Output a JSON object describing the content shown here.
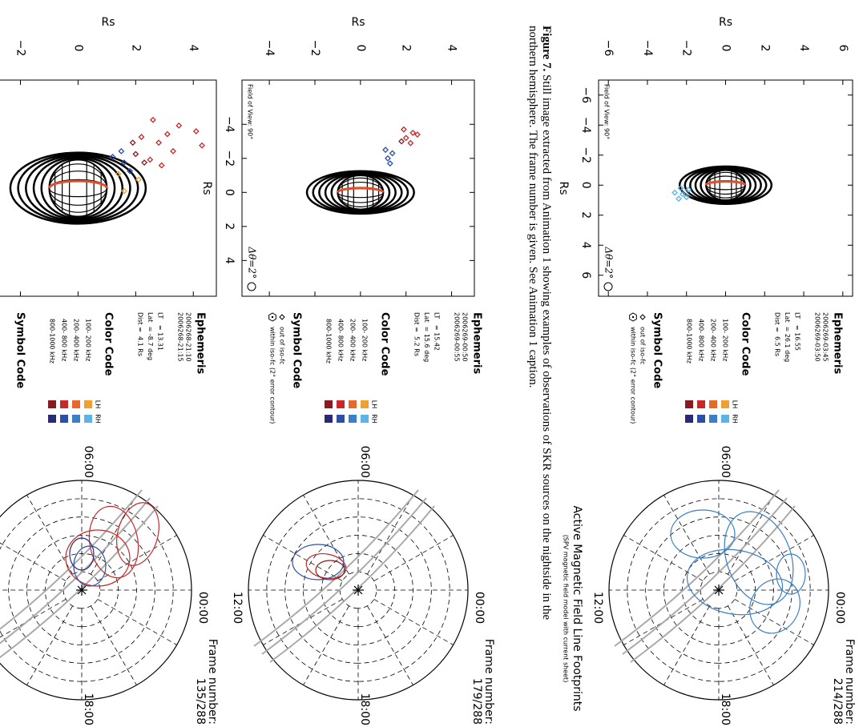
{
  "caption": {
    "label": "Figure 7.",
    "text": "Still image extracted from Animation 1 showing examples of observations of SKR sources on the nightside in the northern hemisphere. The frame number is given. See Animation 1 caption."
  },
  "panels": [
    {
      "scatter": {
        "ylabel": "Rs",
        "xlabel": "Rs",
        "xlim": [
          -7,
          7.4
        ],
        "ylim": [
          -6.5,
          6.5
        ],
        "xticks": [
          {
            "value": -6,
            "label": "−6"
          },
          {
            "value": -4,
            "label": "−4"
          },
          {
            "value": -2,
            "label": "−2"
          },
          0,
          2,
          4,
          6
        ],
        "yticks": [
          {
            "value": -6,
            "label": "−6"
          },
          {
            "value": -4,
            "label": "−4"
          },
          {
            "value": -2,
            "label": "−2"
          },
          0,
          2,
          4,
          6
        ],
        "fov": "Field of View: 90°",
        "resolution": "Δθ=2°",
        "points": [
          {
            "color": "#5ab4e6",
            "x": [
              0.3,
              0.6,
              0.9,
              0.5,
              0.2,
              0.8
            ],
            "y": [
              -1.9,
              -2.2,
              -2.4,
              -2.6,
              -2.3,
              -2.0
            ]
          }
        ]
      },
      "ephemeris": {
        "title": "Ephemeris",
        "times": [
          "2006269-03:45",
          "2006269-03:50"
        ],
        "lines": [
          "LT   = 16.55",
          "Lat  = 26.1 deg",
          "Dist =  6.5 Rs"
        ]
      },
      "color_code": {
        "title": "Color Code",
        "columns": [
          "LH",
          "RH"
        ],
        "bands": [
          {
            "label": "100- 200 kHz",
            "colors": [
              "#f0a030",
              "#5ab4e6"
            ]
          },
          {
            "label": "200- 400 kHz",
            "colors": [
              "#e8682a",
              "#3a7fc8"
            ]
          },
          {
            "label": "400- 800 kHz",
            "colors": [
              "#c8282a",
              "#2a4fa8"
            ]
          },
          {
            "label": "800-1000 kHz",
            "colors": [
              "#8a1a20",
              "#282a78"
            ]
          }
        ]
      },
      "symbol_code": {
        "title": "Symbol Code",
        "items": [
          "out of iso-fc",
          "within iso-fc (2° error contour)"
        ]
      },
      "polar": {
        "title": "Active Magnetic Field Line Footprints",
        "subtitle": "(SPV magnetic field model with current sheet)",
        "frame_label": "Frame number:",
        "frame": "214/288",
        "hours": {
          "top": "00:00",
          "left": "06:00",
          "bottom": "12:00",
          "right": "18:00"
        }
      }
    },
    {
      "scatter": {
        "ylabel": "Rs",
        "xlabel": "Rs",
        "xlim": [
          -6.6,
          6.1
        ],
        "ylim": [
          -5.2,
          5
        ],
        "xticks": [
          {
            "value": -4,
            "label": "−4"
          },
          {
            "value": -2,
            "label": "−2"
          },
          0,
          2,
          4
        ],
        "yticks": [
          {
            "value": -4,
            "label": "−4"
          },
          {
            "value": -2,
            "label": "−2"
          },
          0,
          2,
          4
        ],
        "fov": "Field of View: 90°",
        "resolution": "Δθ=2°",
        "points": [
          {
            "color": "#c8282a",
            "x": [
              -3.5,
              -3.2,
              -3.7,
              -2.9,
              -3.4
            ],
            "y": [
              2.3,
              2.0,
              1.9,
              2.2,
              2.5
            ]
          },
          {
            "color": "#8a1a20",
            "x": [
              -3.0
            ],
            "y": [
              1.8
            ]
          },
          {
            "color": "#2a4fa8",
            "x": [
              -2.3,
              -2.0,
              -1.7,
              -2.5
            ],
            "y": [
              1.4,
              1.2,
              1.3,
              1.1
            ]
          }
        ]
      },
      "ephemeris": {
        "title": "Ephemeris",
        "times": [
          "2006269-00:50",
          "2006269-00:55"
        ],
        "lines": [
          "LT   = 15.42",
          "Lat  = 15.6 deg",
          "Dist =  5.2 Rs"
        ]
      },
      "color_code": {
        "title": "Color Code",
        "columns": [
          "LH",
          "RH"
        ],
        "bands": [
          {
            "label": "100- 200 kHz",
            "colors": [
              "#f0a030",
              "#5ab4e6"
            ]
          },
          {
            "label": "200- 400 kHz",
            "colors": [
              "#e8682a",
              "#3a7fc8"
            ]
          },
          {
            "label": "400- 800 kHz",
            "colors": [
              "#c8282a",
              "#2a4fa8"
            ]
          },
          {
            "label": "800-1000 kHz",
            "colors": [
              "#8a1a20",
              "#282a78"
            ]
          }
        ]
      },
      "symbol_code": {
        "title": "Symbol Code",
        "items": [
          "out of iso-fc",
          "within iso-fc (2° error contour)"
        ]
      },
      "polar": {
        "frame_label": "Frame number:",
        "frame": "179/288",
        "hours": {
          "top": "00:00",
          "left": "06:00",
          "bottom": "12:00",
          "right": "18:00"
        }
      }
    },
    {
      "scatter": {
        "ylabel": "Rs",
        "xlim": [
          -3.8,
          3.8
        ],
        "ylim": [
          -4.6,
          4.8
        ],
        "yticks": [
          {
            "value": -2,
            "label": "−2"
          },
          0,
          2,
          4
        ],
        "points": [
          {
            "color": "#c8282a",
            "x": [
              -2.2,
              -1.9,
              -1.6,
              -2.4,
              -1.3,
              -1.0,
              -1.8,
              -2.0,
              -1.5,
              -0.8
            ],
            "y": [
              3.5,
              3.1,
              2.8,
              2.6,
              3.3,
              2.5,
              2.2,
              4.1,
              4.3,
              2.9
            ]
          },
          {
            "color": "#8a1a20",
            "x": [
              -1.2,
              -0.9,
              -1.6
            ],
            "y": [
              2.0,
              2.3,
              1.9
            ]
          },
          {
            "color": "#2a4fa8",
            "x": [
              -0.9,
              -1.3,
              -0.6,
              -1.1
            ],
            "y": [
              1.6,
              1.5,
              1.8,
              1.2
            ]
          },
          {
            "color": "#f0a030",
            "x": [
              -0.5,
              -0.3,
              0.1
            ],
            "y": [
              1.4,
              2.1,
              1.6
            ]
          }
        ]
      },
      "ephemeris": {
        "title": "Ephemeris",
        "times": [
          "2006268-21:10",
          "2006268-21:15"
        ],
        "lines": [
          "LT   = 13.31",
          "Lat  = -8.7 deg",
          "Dist =  4.1 Rs"
        ]
      },
      "color_code": {
        "title": "Color Code",
        "columns": [
          "LH",
          "RH"
        ],
        "bands": [
          {
            "label": "100- 200 kHz",
            "colors": [
              "#f0a030",
              "#5ab4e6"
            ]
          },
          {
            "label": "200- 400 kHz",
            "colors": [
              "#e8682a",
              "#3a7fc8"
            ]
          },
          {
            "label": "400- 800 kHz",
            "colors": [
              "#c8282a",
              "#2a4fa8"
            ]
          },
          {
            "label": "800-1000 kHz",
            "colors": [
              "#8a1a20",
              "#282a78"
            ]
          }
        ]
      },
      "symbol_code": {
        "title": "Symbol Code"
      },
      "polar": {
        "frame_label": "Frame number:",
        "frame": "135/288",
        "hours": {
          "top": "00:00",
          "left": "06:00",
          "bottom": "12:00",
          "right": "18:00"
        }
      }
    }
  ]
}
